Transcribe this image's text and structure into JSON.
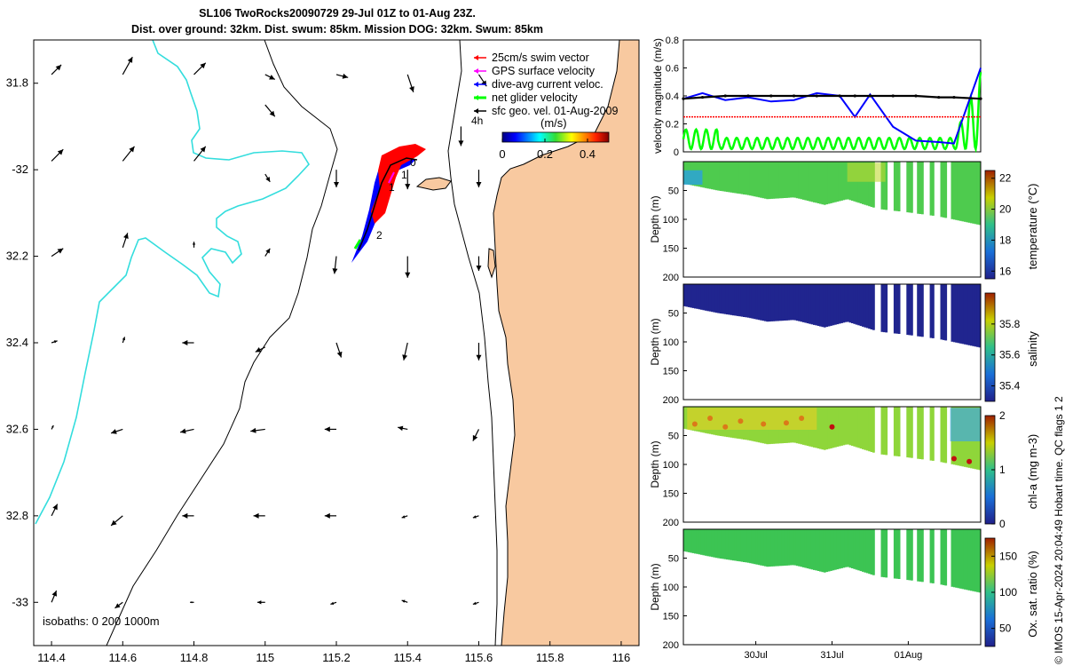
{
  "title": {
    "line1": "SL106 TwoRocks20090729 29-Jul 01Z to 01-Aug 23Z.",
    "line2": "Dist. over ground: 32km. Dist. swum: 85km. Mission DOG: 32km. Swum: 85km"
  },
  "credit": "© IMOS 15-Apr-2024 20:04:49 Hobart time. QC flags 1  2",
  "colors": {
    "land": "#f8c9a0",
    "isobath200": "#000000",
    "isobath1000": "#000000",
    "isobath0": "#33dddd",
    "swim_vector": "#ff0000",
    "gps_velocity": "#ff00ff",
    "dive_current": "#0000ff",
    "net_glider": "#00ff00",
    "sfc_geo": "#000000"
  },
  "chart_data": [
    {
      "id": "map",
      "type": "quiver-map",
      "xlim": [
        114.35,
        116.05
      ],
      "ylim": [
        -33.1,
        -31.7
      ],
      "xticks": [
        114.4,
        114.6,
        114.8,
        115,
        115.2,
        115.4,
        115.6,
        115.8,
        116
      ],
      "xticklabels": [
        "114.4",
        "114.6",
        "114.8",
        "115",
        "115.2",
        "115.4",
        "115.6",
        "115.8",
        "116"
      ],
      "yticks": [
        -31.8,
        -32,
        -32.2,
        -32.4,
        -32.6,
        -32.8,
        -33
      ],
      "yticklabels": [
        "31.8",
        "-32",
        "32.2",
        "32.4",
        "32.6",
        "32.8",
        "-33"
      ],
      "legend": [
        {
          "label": "25cm/s swim vector",
          "color": "#ff0000"
        },
        {
          "label": "GPS surface velocity",
          "color": "#ff00ff"
        },
        {
          "label": "dive-avg current veloc.",
          "color": "#0000ff"
        },
        {
          "label": "net glider velocity",
          "color": "#00ff00"
        },
        {
          "label": "sfc geo. vel. 01-Aug-2009",
          "color": "#000000"
        }
      ],
      "time_marker_label": "4h",
      "colorbar": {
        "label": "(m/s)",
        "ticks": [
          0,
          0.2,
          0.4
        ],
        "ticklabels": [
          "0",
          "0.2",
          "0.4"
        ],
        "range": [
          0,
          0.5
        ]
      },
      "isobaths_label": "isobaths: 0   200  1000m",
      "track_labels": [
        "0",
        "1",
        "1",
        "2"
      ],
      "geo_vectors": [
        {
          "lon": 114.4,
          "lat": -31.78,
          "u": 0.1,
          "v": 0.1
        },
        {
          "lon": 114.6,
          "lat": -31.78,
          "u": 0.1,
          "v": 0.18
        },
        {
          "lon": 114.8,
          "lat": -31.78,
          "u": 0.12,
          "v": 0.12
        },
        {
          "lon": 115.0,
          "lat": -31.78,
          "u": 0.1,
          "v": -0.05
        },
        {
          "lon": 115.2,
          "lat": -31.78,
          "u": 0.12,
          "v": -0.03
        },
        {
          "lon": 115.4,
          "lat": -31.78,
          "u": 0.06,
          "v": -0.18
        },
        {
          "lon": 115.6,
          "lat": -31.78,
          "u": 0.08,
          "v": -0.12
        },
        {
          "lon": 115.0,
          "lat": -31.85,
          "u": 0.1,
          "v": -0.12
        },
        {
          "lon": 115.55,
          "lat": -31.9,
          "u": 0.0,
          "v": -0.2
        },
        {
          "lon": 114.4,
          "lat": -31.98,
          "u": 0.12,
          "v": 0.12
        },
        {
          "lon": 114.6,
          "lat": -31.98,
          "u": 0.12,
          "v": 0.15
        },
        {
          "lon": 114.8,
          "lat": -31.98,
          "u": 0.12,
          "v": 0.15
        },
        {
          "lon": 115.0,
          "lat": -32.01,
          "u": 0.05,
          "v": -0.08
        },
        {
          "lon": 115.2,
          "lat": -32.0,
          "u": 0.0,
          "v": -0.18
        },
        {
          "lon": 115.4,
          "lat": -32.0,
          "u": 0.0,
          "v": -0.2
        },
        {
          "lon": 115.6,
          "lat": -32.0,
          "u": 0.0,
          "v": -0.18
        },
        {
          "lon": 114.4,
          "lat": -32.2,
          "u": 0.12,
          "v": 0.08
        },
        {
          "lon": 114.6,
          "lat": -32.18,
          "u": 0.05,
          "v": 0.15
        },
        {
          "lon": 114.8,
          "lat": -32.18,
          "u": 0.0,
          "v": 0.06
        },
        {
          "lon": 115.0,
          "lat": -32.2,
          "u": 0.05,
          "v": 0.08
        },
        {
          "lon": 115.2,
          "lat": -32.2,
          "u": -0.02,
          "v": -0.18
        },
        {
          "lon": 115.4,
          "lat": -32.2,
          "u": 0.0,
          "v": -0.22
        },
        {
          "lon": 115.6,
          "lat": -32.2,
          "u": 0.0,
          "v": -0.15
        },
        {
          "lon": 114.4,
          "lat": -32.4,
          "u": 0.06,
          "v": 0.02
        },
        {
          "lon": 114.6,
          "lat": -32.4,
          "u": 0.02,
          "v": 0.06
        },
        {
          "lon": 114.8,
          "lat": -32.4,
          "u": -0.12,
          "v": 0.0
        },
        {
          "lon": 115.0,
          "lat": -32.41,
          "u": -0.1,
          "v": -0.05
        },
        {
          "lon": 115.2,
          "lat": -32.4,
          "u": 0.05,
          "v": -0.15
        },
        {
          "lon": 115.4,
          "lat": -32.4,
          "u": -0.04,
          "v": -0.18
        },
        {
          "lon": 115.6,
          "lat": -32.4,
          "u": 0.0,
          "v": -0.18
        },
        {
          "lon": 114.4,
          "lat": -32.6,
          "u": 0.02,
          "v": 0.04
        },
        {
          "lon": 114.6,
          "lat": -32.6,
          "u": -0.12,
          "v": -0.04
        },
        {
          "lon": 114.8,
          "lat": -32.6,
          "u": -0.14,
          "v": -0.03
        },
        {
          "lon": 115.0,
          "lat": -32.6,
          "u": -0.15,
          "v": -0.02
        },
        {
          "lon": 115.2,
          "lat": -32.6,
          "u": -0.12,
          "v": 0.0
        },
        {
          "lon": 115.4,
          "lat": -32.6,
          "u": -0.1,
          "v": 0.02
        },
        {
          "lon": 115.6,
          "lat": -32.6,
          "u": -0.06,
          "v": -0.12
        },
        {
          "lon": 114.4,
          "lat": -32.8,
          "u": 0.06,
          "v": 0.12
        },
        {
          "lon": 114.6,
          "lat": -32.8,
          "u": -0.12,
          "v": -0.1
        },
        {
          "lon": 114.8,
          "lat": -32.8,
          "u": -0.12,
          "v": 0.0
        },
        {
          "lon": 115.0,
          "lat": -32.8,
          "u": -0.12,
          "v": 0.0
        },
        {
          "lon": 115.2,
          "lat": -32.8,
          "u": -0.12,
          "v": 0.0
        },
        {
          "lon": 115.4,
          "lat": -32.8,
          "u": -0.06,
          "v": -0.02
        },
        {
          "lon": 115.6,
          "lat": -32.8,
          "u": -0.06,
          "v": -0.02
        },
        {
          "lon": 114.4,
          "lat": -33.0,
          "u": 0.05,
          "v": 0.12
        },
        {
          "lon": 114.6,
          "lat": -33.0,
          "u": -0.08,
          "v": -0.06
        },
        {
          "lon": 114.8,
          "lat": -33.0,
          "u": -0.04,
          "v": 0.0
        },
        {
          "lon": 115.0,
          "lat": -33.0,
          "u": -0.08,
          "v": 0.0
        },
        {
          "lon": 115.2,
          "lat": -33.0,
          "u": -0.06,
          "v": -0.02
        },
        {
          "lon": 115.4,
          "lat": -33.0,
          "u": -0.06,
          "v": 0.02
        },
        {
          "lon": 115.6,
          "lat": -33.0,
          "u": -0.06,
          "v": -0.02
        }
      ]
    },
    {
      "id": "velocity",
      "type": "line",
      "ylabel": "velocity magnitude (m/s)",
      "ylim": [
        0,
        0.8
      ],
      "yticks": [
        0,
        0.2,
        0.4,
        0.6,
        0.8
      ],
      "yticklabels": [
        "0",
        "0.2",
        "0.4",
        "0.6",
        "0.8"
      ],
      "xlim": [
        29.05,
        32.95
      ],
      "x": [
        29.05,
        29.3,
        29.6,
        29.9,
        30.2,
        30.5,
        30.8,
        31.1,
        31.3,
        31.5,
        31.8,
        32.1,
        32.4,
        32.6,
        32.95
      ],
      "series": [
        {
          "name": "dive-avg current veloc.",
          "color": "#0000ff",
          "values": [
            0.38,
            0.42,
            0.37,
            0.39,
            0.36,
            0.37,
            0.42,
            0.4,
            0.25,
            0.41,
            0.18,
            0.08,
            0.07,
            0.06,
            0.6
          ]
        },
        {
          "name": "sfc geo. vel.",
          "color": "#000000",
          "values": [
            0.38,
            0.39,
            0.4,
            0.4,
            0.4,
            0.4,
            0.4,
            0.4,
            0.4,
            0.4,
            0.4,
            0.4,
            0.39,
            0.39,
            0.38
          ]
        },
        {
          "name": "25cm/s swim vector",
          "color": "#ff0000",
          "values": [
            0.25,
            0.25,
            0.25,
            0.25,
            0.25,
            0.25,
            0.25,
            0.25,
            0.25,
            0.25,
            0.25,
            0.25,
            0.25,
            0.25,
            0.25
          ]
        }
      ],
      "net_glider_oscillation": {
        "name": "net glider velocity",
        "color": "#00ff00",
        "baseline": 0.02,
        "amplitude_max": 0.55
      }
    },
    {
      "id": "temperature",
      "type": "section",
      "ylabel": "Depth (m)",
      "cbar_label": "temperature (°C)",
      "clim": [
        15.5,
        22.5
      ],
      "cticks": [
        "16",
        "18",
        "20",
        "22"
      ],
      "yticks": [
        "0",
        "50",
        "100",
        "150",
        "200"
      ],
      "base_color": "#4ecb4e",
      "depth_max": 200
    },
    {
      "id": "salinity",
      "type": "section",
      "ylabel": "Depth (m)",
      "cbar_label": "salinity",
      "clim": [
        35.3,
        36.0
      ],
      "cticks": [
        "35.4",
        "35.6",
        "35.8"
      ],
      "yticks": [
        "0",
        "50",
        "100",
        "150",
        "200"
      ],
      "base_color": "#20258f",
      "depth_max": 200
    },
    {
      "id": "chla",
      "type": "section",
      "ylabel": "Depth (m)",
      "cbar_label": "chl-a (mg m-3)",
      "clim": [
        0,
        2
      ],
      "cticks": [
        "0",
        "1",
        "2"
      ],
      "yticks": [
        "0",
        "50",
        "100",
        "150",
        "200"
      ],
      "base_color": "#8fd63a",
      "depth_max": 200
    },
    {
      "id": "oxygen",
      "type": "section",
      "ylabel": "Depth (m)",
      "cbar_label": "Ox. sat. ratio (%)",
      "clim": [
        25,
        175
      ],
      "cticks": [
        "50",
        "100",
        "150"
      ],
      "yticks": [
        "0",
        "50",
        "100",
        "150",
        "200"
      ],
      "base_color": "#3cc453",
      "depth_max": 200
    }
  ],
  "time_axis": {
    "ticks": [
      30,
      31,
      32
    ],
    "ticklabels": [
      "30Jul",
      "31Jul",
      "01Aug"
    ],
    "range": [
      29.05,
      32.95
    ]
  },
  "section_profile": {
    "t": [
      29.05,
      29.5,
      29.9,
      30.15,
      30.5,
      30.9,
      31.2,
      31.6,
      32.0,
      32.4,
      32.95
    ],
    "bottom_depth": [
      38,
      50,
      58,
      65,
      62,
      75,
      65,
      82,
      88,
      95,
      110
    ],
    "gaps": [
      [
        31.55,
        31.65
      ],
      [
        31.72,
        31.8
      ],
      [
        31.9,
        31.98
      ],
      [
        32.05,
        32.12
      ],
      [
        32.2,
        32.28
      ],
      [
        32.35,
        32.43
      ],
      [
        32.5,
        32.57
      ]
    ]
  }
}
